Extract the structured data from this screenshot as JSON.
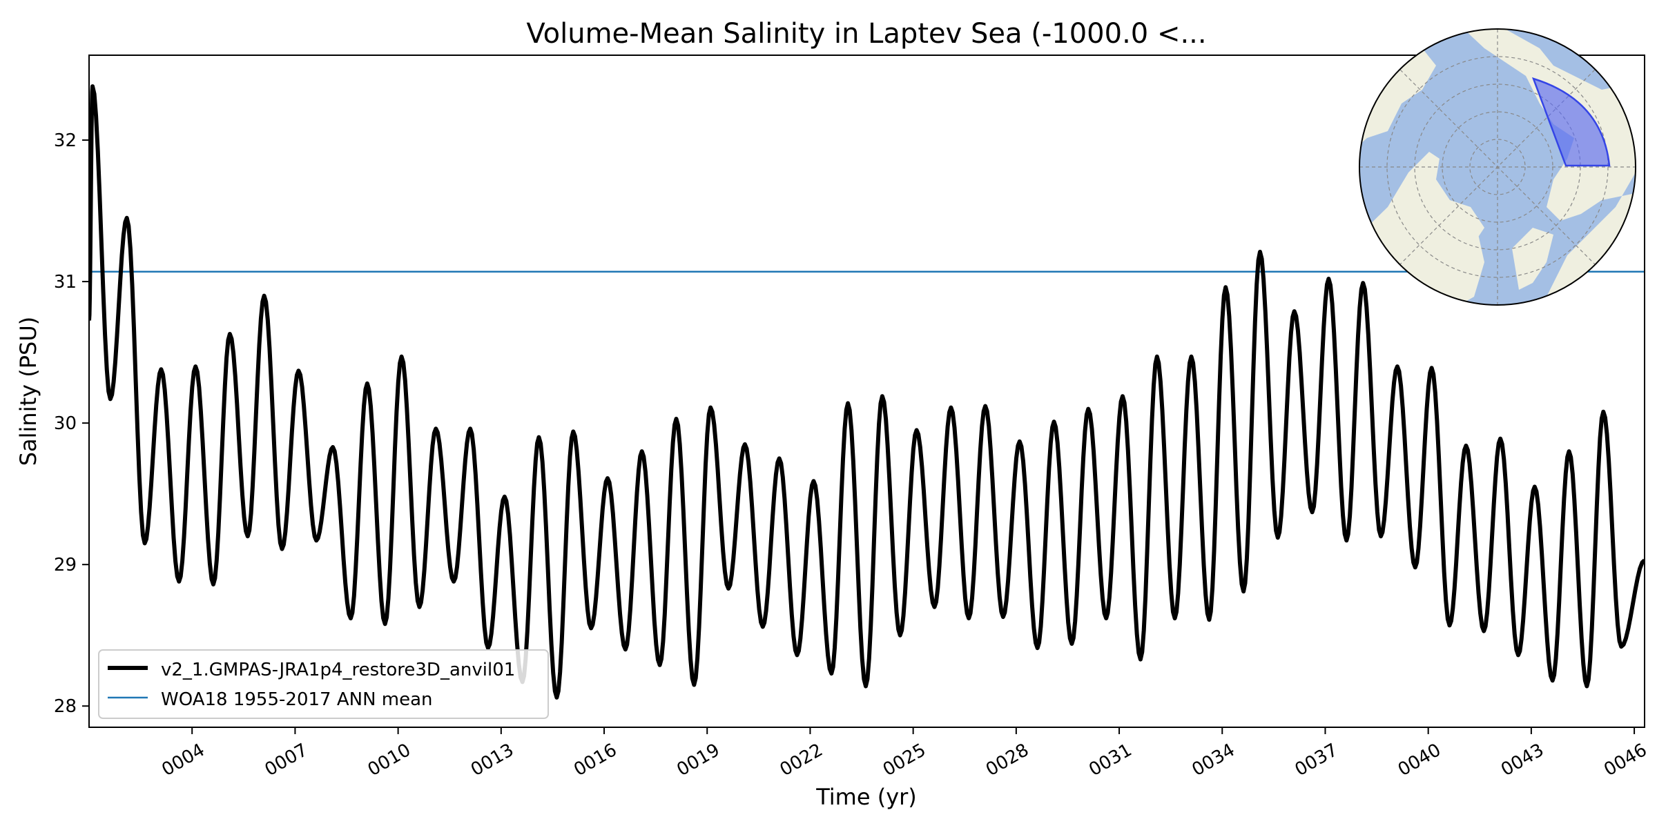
{
  "chart_data": {
    "type": "line",
    "title": "Volume-Mean Salinity in Laptev Sea (-1000.0 <...",
    "xlabel": "Time (yr)",
    "ylabel": "Salinity (PSU)",
    "xlim": [
      1.0,
      46.3
    ],
    "ylim": [
      27.85,
      32.6
    ],
    "x_tick_values": [
      4,
      7,
      10,
      13,
      16,
      19,
      22,
      25,
      28,
      31,
      34,
      37,
      40,
      43,
      46
    ],
    "x_tick_labels": [
      "0004",
      "0007",
      "0010",
      "0013",
      "0016",
      "0019",
      "0022",
      "0025",
      "0028",
      "0031",
      "0034",
      "0037",
      "0040",
      "0043",
      "0046"
    ],
    "y_ticks": [
      28,
      29,
      30,
      31,
      32
    ],
    "legend_position": "lower-left",
    "grid": false,
    "series": [
      {
        "name": "v2_1.GMPAS-JRA1p4_restore3D_anvil01",
        "color": "#000000",
        "annual_peaks": [
          32.38,
          31.45,
          30.38,
          30.4,
          30.63,
          30.9,
          30.37,
          29.83,
          30.28,
          30.47,
          29.96,
          29.96,
          29.48,
          29.9,
          29.94,
          29.61,
          29.8,
          30.03,
          30.11,
          29.85,
          29.75,
          29.59,
          30.14,
          30.19,
          29.95,
          30.11,
          30.12,
          29.87,
          30.01,
          30.1,
          30.19,
          30.47,
          30.47,
          30.96,
          31.21,
          30.79,
          31.02,
          30.99,
          30.4,
          30.39,
          29.84,
          29.89,
          29.55,
          29.8,
          30.08
        ],
        "annual_troughs": [
          30.17,
          29.15,
          28.88,
          28.86,
          29.2,
          29.11,
          29.17,
          28.62,
          28.58,
          28.7,
          28.88,
          28.41,
          28.17,
          28.06,
          28.55,
          28.4,
          28.29,
          28.15,
          28.83,
          28.56,
          28.36,
          28.23,
          28.14,
          28.5,
          28.7,
          28.62,
          28.63,
          28.41,
          28.44,
          28.62,
          28.33,
          28.62,
          28.61,
          28.81,
          29.19,
          29.37,
          29.17,
          29.2,
          28.98,
          28.57,
          28.53,
          28.36,
          28.18,
          28.14,
          28.42,
          28.34
        ],
        "final_value": 29.03
      },
      {
        "name": "WOA18 1955-2017 ANN mean",
        "color": "#1f77b4",
        "values": [
          31.07
        ]
      }
    ]
  },
  "map_inset": {
    "ocean_color": "#a4bfe4",
    "land_color": "#efefe0",
    "region_color": "#5a6af0"
  }
}
